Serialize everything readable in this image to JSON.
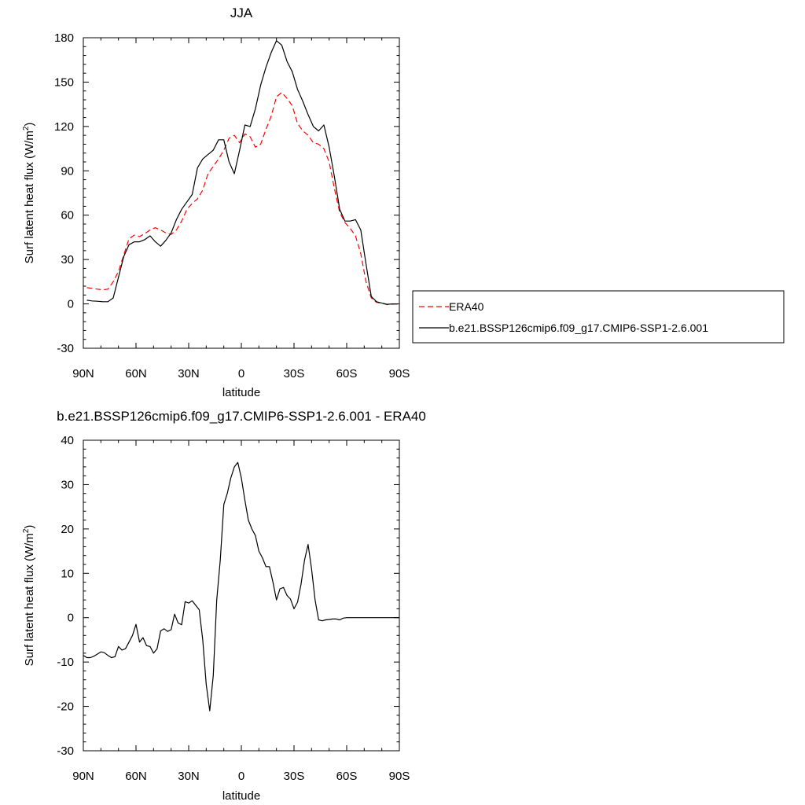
{
  "chart_data": [
    {
      "type": "line",
      "title": "JJA",
      "xlabel": "latitude",
      "ylabel": "Surf latent heat flux (W/m",
      "ylabel_sup": "2",
      "ylabel_close": ")",
      "xlim": [
        90,
        -90
      ],
      "ylim": [
        -30,
        180
      ],
      "xticks": [
        90,
        60,
        30,
        0,
        -30,
        -60,
        -90
      ],
      "xtick_labels": [
        "90N",
        "60N",
        "30N",
        "0",
        "30S",
        "60S",
        "90S"
      ],
      "yticks": [
        -30,
        0,
        30,
        60,
        90,
        120,
        150,
        180
      ],
      "ytick_labels": [
        "-30",
        "0",
        "30",
        "60",
        "90",
        "120",
        "150",
        "180"
      ],
      "grid": false,
      "legend_position": "right",
      "series": [
        {
          "name": "ERA40",
          "color": "#ff0000",
          "dash": "dashed",
          "x": [
            88,
            85,
            82,
            79,
            76,
            73,
            70,
            67,
            64,
            61,
            58,
            55,
            52,
            49,
            46,
            43,
            40,
            37,
            34,
            31,
            28,
            25,
            22,
            19,
            16,
            13,
            10,
            7,
            4,
            1,
            -2,
            -5,
            -8,
            -11,
            -14,
            -17,
            -20,
            -23,
            -26,
            -29,
            -32,
            -35,
            -38,
            -41,
            -44,
            -47,
            -50,
            -53,
            -56,
            -59,
            -62,
            -65,
            -68,
            -71,
            -74,
            -77,
            -80,
            -83,
            -86,
            -89
          ],
          "y": [
            11,
            10.5,
            10,
            9.5,
            10,
            15,
            22,
            33,
            44,
            46.5,
            45.5,
            47.5,
            50,
            51.5,
            50,
            48,
            47,
            50,
            56,
            64,
            68,
            71,
            77,
            88,
            93,
            98,
            104,
            112,
            114,
            109,
            115,
            113,
            106,
            108,
            118,
            127,
            140,
            143,
            139,
            134,
            122,
            117,
            114,
            109,
            108,
            105,
            96,
            78,
            62,
            55,
            51,
            46,
            34,
            15,
            4,
            1,
            0.5,
            -0.5,
            -0.2,
            0
          ]
        },
        {
          "name": "b.e21.BSSP126cmip6.f09_g17.CMIP6-SSP1-2.6.001",
          "color": "#000000",
          "dash": "solid",
          "x": [
            88,
            85,
            82,
            79,
            76,
            73,
            70,
            67,
            64,
            61,
            58,
            55,
            52,
            49,
            46,
            43,
            40,
            37,
            34,
            31,
            28,
            25,
            22,
            19,
            16,
            13,
            10,
            7,
            4,
            1,
            -2,
            -5,
            -8,
            -11,
            -14,
            -17,
            -20,
            -23,
            -26,
            -29,
            -32,
            -35,
            -38,
            -41,
            -44,
            -47,
            -50,
            -53,
            -56,
            -59,
            -62,
            -65,
            -68,
            -71,
            -74,
            -77,
            -80,
            -83,
            -86,
            -89
          ],
          "y": [
            2.5,
            2,
            1.8,
            1.5,
            1.5,
            4,
            18,
            32,
            40,
            42,
            42,
            43.5,
            46,
            42,
            39,
            43,
            48,
            57,
            64,
            69,
            74,
            92,
            98,
            101,
            104,
            111,
            111,
            96,
            88,
            104,
            121,
            120,
            132,
            148,
            160,
            170,
            178,
            175,
            164,
            157,
            145,
            137,
            128,
            120,
            117,
            121,
            106,
            86,
            64,
            56,
            56,
            57,
            50,
            27,
            5,
            1.5,
            0.5,
            -0.3,
            0,
            0
          ]
        }
      ]
    },
    {
      "type": "line",
      "title": "b.e21.BSSP126cmip6.f09_g17.CMIP6-SSP1-2.6.001 - ERA40",
      "xlabel": "latitude",
      "ylabel": "Surf latent heat flux (W/m",
      "ylabel_sup": "2",
      "ylabel_close": ")",
      "xlim": [
        90,
        -90
      ],
      "ylim": [
        -30,
        40
      ],
      "xticks": [
        90,
        60,
        30,
        0,
        -30,
        -60,
        -90
      ],
      "xtick_labels": [
        "90N",
        "60N",
        "30N",
        "0",
        "30S",
        "60S",
        "90S"
      ],
      "yticks": [
        -30,
        -20,
        -10,
        0,
        10,
        20,
        30,
        40
      ],
      "ytick_labels": [
        "-30",
        "-20",
        "-10",
        "0",
        "10",
        "20",
        "30",
        "40"
      ],
      "grid": false,
      "series": [
        {
          "color": "#000000",
          "dash": "solid",
          "x": [
            90,
            88,
            86,
            84,
            82,
            80,
            78,
            76,
            74,
            72,
            70,
            68,
            66,
            64,
            62,
            60,
            58,
            56,
            54,
            52,
            50,
            48,
            46,
            44,
            42,
            40,
            38,
            36,
            34,
            32,
            30,
            28,
            26,
            24,
            22,
            20,
            18,
            16,
            14,
            12,
            10,
            8,
            6,
            4,
            2,
            0,
            -2,
            -4,
            -6,
            -8,
            -10,
            -12,
            -14,
            -16,
            -18,
            -20,
            -22,
            -24,
            -26,
            -28,
            -30,
            -32,
            -34,
            -36,
            -38,
            -40,
            -42,
            -44,
            -46,
            -48,
            -50,
            -52,
            -54,
            -56,
            -58,
            -60,
            -62,
            -64,
            -66,
            -68,
            -70,
            -72,
            -74,
            -76,
            -78,
            -80,
            -82,
            -84,
            -86,
            -88,
            -90
          ],
          "y": [
            -8.5,
            -9,
            -9,
            -8.7,
            -8.2,
            -7.7,
            -7.9,
            -8.5,
            -9,
            -8.8,
            -6.5,
            -7.3,
            -7,
            -5.5,
            -4,
            -1.5,
            -5.5,
            -4.5,
            -6.3,
            -6.5,
            -8,
            -7,
            -3,
            -2.5,
            -3.1,
            -2.7,
            0.8,
            -1.2,
            -1.6,
            3.6,
            3.3,
            3.8,
            2.8,
            1.8,
            -5,
            -15,
            -21,
            -13,
            4,
            13,
            25.5,
            28,
            31.5,
            34,
            35,
            31.5,
            26.5,
            22,
            20,
            18.5,
            15,
            13.5,
            11.5,
            11.5,
            8,
            4,
            6.5,
            6.8,
            5,
            4.2,
            2,
            3.5,
            7.5,
            13,
            16.5,
            11,
            4,
            -0.5,
            -0.7,
            -0.5,
            -0.4,
            -0.3,
            -0.3,
            -0.5,
            -0.1,
            0,
            0,
            0,
            0,
            0,
            0,
            0,
            0,
            0,
            0,
            0,
            0,
            0,
            0,
            0,
            0
          ]
        }
      ]
    }
  ]
}
